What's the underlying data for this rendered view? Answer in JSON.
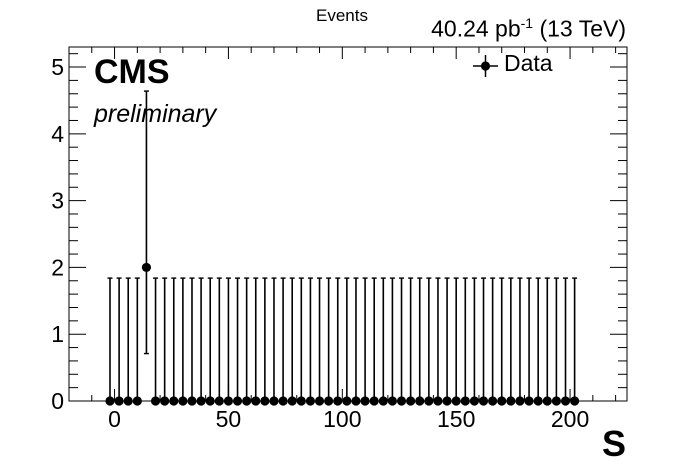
{
  "chart_data": {
    "type": "scatter",
    "x_title": "S",
    "y_title": "Events",
    "lumi_text": {
      "value": "40.24 pb",
      "exp": "-1",
      "suffix": " (13 TeV)"
    },
    "cms_label": "CMS",
    "preliminary_label": "preliminary",
    "legend": {
      "label": "Data",
      "placement": "top-right"
    },
    "xlim": [
      -20,
      225
    ],
    "ylim": [
      0,
      5.3
    ],
    "x_ticks": [
      0,
      50,
      100,
      150,
      200
    ],
    "y_ticks": [
      0,
      1,
      2,
      3,
      4,
      5
    ],
    "series": [
      {
        "name": "Data",
        "x": [
          -2,
          2,
          6,
          10,
          14,
          18,
          22,
          26,
          30,
          34,
          38,
          42,
          46,
          50,
          54,
          58,
          62,
          66,
          70,
          74,
          78,
          82,
          86,
          90,
          94,
          98,
          102,
          106,
          110,
          114,
          118,
          122,
          126,
          130,
          134,
          138,
          142,
          146,
          150,
          154,
          158,
          162,
          166,
          170,
          174,
          178,
          182,
          186,
          190,
          194,
          198,
          202
        ],
        "y": [
          0,
          0,
          0,
          0,
          2,
          0,
          0,
          0,
          0,
          0,
          0,
          0,
          0,
          0,
          0,
          0,
          0,
          0,
          0,
          0,
          0,
          0,
          0,
          0,
          0,
          0,
          0,
          0,
          0,
          0,
          0,
          0,
          0,
          0,
          0,
          0,
          0,
          0,
          0,
          0,
          0,
          0,
          0,
          0,
          0,
          0,
          0,
          0,
          0,
          0,
          0,
          0
        ],
        "err_low": [
          0,
          0,
          0,
          0,
          1.29,
          0,
          0,
          0,
          0,
          0,
          0,
          0,
          0,
          0,
          0,
          0,
          0,
          0,
          0,
          0,
          0,
          0,
          0,
          0,
          0,
          0,
          0,
          0,
          0,
          0,
          0,
          0,
          0,
          0,
          0,
          0,
          0,
          0,
          0,
          0,
          0,
          0,
          0,
          0,
          0,
          0,
          0,
          0,
          0,
          0,
          0,
          0
        ],
        "err_high": [
          1.84,
          1.84,
          1.84,
          1.84,
          2.64,
          1.84,
          1.84,
          1.84,
          1.84,
          1.84,
          1.84,
          1.84,
          1.84,
          1.84,
          1.84,
          1.84,
          1.84,
          1.84,
          1.84,
          1.84,
          1.84,
          1.84,
          1.84,
          1.84,
          1.84,
          1.84,
          1.84,
          1.84,
          1.84,
          1.84,
          1.84,
          1.84,
          1.84,
          1.84,
          1.84,
          1.84,
          1.84,
          1.84,
          1.84,
          1.84,
          1.84,
          1.84,
          1.84,
          1.84,
          1.84,
          1.84,
          1.84,
          1.84,
          1.84,
          1.84,
          1.84,
          1.84
        ]
      }
    ]
  }
}
